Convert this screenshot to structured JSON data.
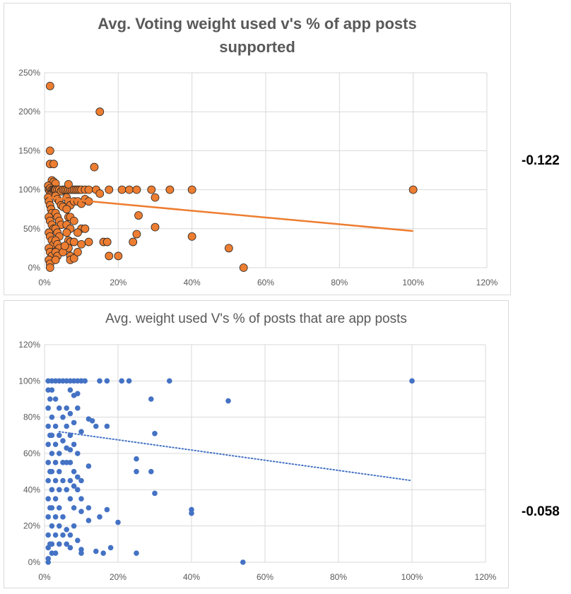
{
  "correlations": {
    "chart1": "-0.122",
    "chart2": "-0.058"
  },
  "chart_data": [
    {
      "type": "scatter",
      "title": "Avg. Voting weight used v's % of app posts supported",
      "title_lines": [
        "Avg. Voting weight used v's % of app posts",
        "supported"
      ],
      "xlim": [
        0,
        1.2
      ],
      "ylim": [
        0,
        2.5
      ],
      "x_ticks": [
        0,
        0.2,
        0.4,
        0.6,
        0.8,
        1.0,
        1.2
      ],
      "y_ticks": [
        0,
        0.5,
        1.0,
        1.5,
        2.0,
        2.5
      ],
      "x_tick_labels": [
        "0%",
        "20%",
        "40%",
        "60%",
        "80%",
        "100%",
        "120%"
      ],
      "y_tick_labels": [
        "0%",
        "50%",
        "100%",
        "150%",
        "200%",
        "250%"
      ],
      "grid": true,
      "marker_color": "#ED7D31",
      "marker_edge_color": "#262626",
      "trendline": {
        "style": "solid",
        "color": "#ED7D31",
        "x": [
          0.01,
          1.0
        ],
        "y": [
          0.9,
          0.47
        ]
      },
      "series": [
        {
          "points": [
            [
              0.015,
              2.33
            ],
            [
              0.15,
              2.0
            ],
            [
              0.015,
              1.5
            ],
            [
              0.015,
              1.33
            ],
            [
              0.025,
              1.33
            ],
            [
              0.135,
              1.29
            ],
            [
              0.02,
              1.12
            ],
            [
              0.025,
              1.1
            ],
            [
              0.03,
              1.08
            ],
            [
              0.01,
              1.05
            ],
            [
              0.012,
              1.0
            ],
            [
              0.014,
              0.98
            ],
            [
              0.016,
              1.02
            ],
            [
              0.018,
              0.95
            ],
            [
              0.02,
              1.0
            ],
            [
              0.022,
              0.97
            ],
            [
              0.024,
              1.0
            ],
            [
              0.026,
              0.99
            ],
            [
              0.028,
              1.0
            ],
            [
              0.03,
              1.0
            ],
            [
              0.035,
              1.0
            ],
            [
              0.04,
              1.0
            ],
            [
              0.045,
              0.98
            ],
            [
              0.05,
              1.0
            ],
            [
              0.055,
              1.0
            ],
            [
              0.06,
              1.0
            ],
            [
              0.065,
              1.0
            ],
            [
              0.07,
              1.0
            ],
            [
              0.075,
              1.0
            ],
            [
              0.08,
              1.0
            ],
            [
              0.085,
              1.0
            ],
            [
              0.09,
              1.0
            ],
            [
              0.095,
              1.0
            ],
            [
              0.1,
              1.0
            ],
            [
              0.11,
              1.0
            ],
            [
              0.12,
              1.0
            ],
            [
              0.14,
              1.0
            ],
            [
              0.15,
              0.95
            ],
            [
              0.175,
              1.0
            ],
            [
              0.21,
              1.0
            ],
            [
              0.23,
              1.0
            ],
            [
              0.25,
              1.0
            ],
            [
              0.29,
              1.0
            ],
            [
              0.34,
              1.0
            ],
            [
              0.4,
              1.0
            ],
            [
              1.0,
              1.0
            ],
            [
              0.3,
              0.9
            ],
            [
              0.065,
              1.07
            ],
            [
              0.01,
              0.9
            ],
            [
              0.012,
              0.85
            ],
            [
              0.015,
              0.8
            ],
            [
              0.018,
              0.75
            ],
            [
              0.02,
              0.7
            ],
            [
              0.012,
              0.65
            ],
            [
              0.015,
              0.6
            ],
            [
              0.02,
              0.55
            ],
            [
              0.025,
              0.5
            ],
            [
              0.012,
              0.45
            ],
            [
              0.015,
              0.4
            ],
            [
              0.02,
              0.35
            ],
            [
              0.025,
              0.3
            ],
            [
              0.012,
              0.25
            ],
            [
              0.015,
              0.2
            ],
            [
              0.02,
              0.15
            ],
            [
              0.012,
              0.1
            ],
            [
              0.015,
              0.05
            ],
            [
              0.015,
              0.0
            ],
            [
              0.03,
              0.92
            ],
            [
              0.035,
              0.88
            ],
            [
              0.04,
              0.85
            ],
            [
              0.045,
              0.8
            ],
            [
              0.05,
              0.78
            ],
            [
              0.03,
              0.7
            ],
            [
              0.035,
              0.65
            ],
            [
              0.04,
              0.6
            ],
            [
              0.045,
              0.55
            ],
            [
              0.03,
              0.5
            ],
            [
              0.035,
              0.45
            ],
            [
              0.04,
              0.4
            ],
            [
              0.03,
              0.35
            ],
            [
              0.035,
              0.3
            ],
            [
              0.04,
              0.25
            ],
            [
              0.03,
              0.2
            ],
            [
              0.035,
              0.15
            ],
            [
              0.03,
              0.1
            ],
            [
              0.06,
              0.9
            ],
            [
              0.065,
              0.85
            ],
            [
              0.07,
              0.8
            ],
            [
              0.08,
              0.85
            ],
            [
              0.09,
              0.85
            ],
            [
              0.1,
              0.82
            ],
            [
              0.11,
              0.88
            ],
            [
              0.12,
              0.85
            ],
            [
              0.06,
              0.75
            ],
            [
              0.065,
              0.65
            ],
            [
              0.07,
              0.65
            ],
            [
              0.06,
              0.55
            ],
            [
              0.07,
              0.5
            ],
            [
              0.06,
              0.45
            ],
            [
              0.065,
              0.35
            ],
            [
              0.07,
              0.33
            ],
            [
              0.08,
              0.33
            ],
            [
              0.065,
              0.25
            ],
            [
              0.07,
              0.15
            ],
            [
              0.07,
              0.1
            ],
            [
              0.08,
              0.12
            ],
            [
              0.1,
              0.5
            ],
            [
              0.11,
              0.5
            ],
            [
              0.12,
              0.33
            ],
            [
              0.16,
              0.33
            ],
            [
              0.17,
              0.33
            ],
            [
              0.175,
              0.15
            ],
            [
              0.2,
              0.15
            ],
            [
              0.24,
              0.33
            ],
            [
              0.25,
              0.43
            ],
            [
              0.255,
              0.67
            ],
            [
              0.3,
              0.52
            ],
            [
              0.4,
              0.4
            ],
            [
              0.5,
              0.25
            ],
            [
              0.54,
              0.0
            ],
            [
              0.09,
              0.45
            ],
            [
              0.1,
              0.3
            ],
            [
              0.09,
              0.2
            ],
            [
              0.05,
              0.2
            ],
            [
              0.055,
              0.28
            ],
            [
              0.08,
              0.6
            ]
          ]
        }
      ]
    },
    {
      "type": "scatter",
      "title": "Avg. weight used  V's % of posts that are app posts",
      "xlim": [
        0,
        1.2
      ],
      "ylim": [
        0,
        1.2
      ],
      "x_ticks": [
        0,
        0.2,
        0.4,
        0.6,
        0.8,
        1.0,
        1.2
      ],
      "y_ticks": [
        0,
        0.2,
        0.4,
        0.6,
        0.8,
        1.0,
        1.2
      ],
      "x_tick_labels": [
        "0%",
        "20%",
        "40%",
        "60%",
        "80%",
        "100%",
        "120%"
      ],
      "y_tick_labels": [
        "0%",
        "20%",
        "40%",
        "60%",
        "80%",
        "100%",
        "120%"
      ],
      "grid": true,
      "marker_color": "#4472C4",
      "trendline": {
        "style": "dotted",
        "color": "#4472C4",
        "x": [
          0.04,
          1.0
        ],
        "y": [
          0.72,
          0.45
        ]
      },
      "series": [
        {
          "points": [
            [
              0.01,
              1.0
            ],
            [
              0.02,
              1.0
            ],
            [
              0.03,
              1.0
            ],
            [
              0.04,
              1.0
            ],
            [
              0.05,
              1.0
            ],
            [
              0.06,
              1.0
            ],
            [
              0.07,
              1.0
            ],
            [
              0.08,
              1.0
            ],
            [
              0.09,
              1.0
            ],
            [
              0.1,
              1.0
            ],
            [
              0.11,
              1.0
            ],
            [
              0.15,
              1.0
            ],
            [
              0.17,
              1.0
            ],
            [
              0.21,
              1.0
            ],
            [
              0.23,
              1.0
            ],
            [
              0.34,
              1.0
            ],
            [
              1.0,
              1.0
            ],
            [
              0.29,
              0.9
            ],
            [
              0.5,
              0.89
            ],
            [
              0.3,
              0.71
            ],
            [
              0.12,
              0.79
            ],
            [
              0.13,
              0.78
            ],
            [
              0.17,
              0.75
            ],
            [
              0.14,
              0.75
            ],
            [
              0.1,
              0.72
            ],
            [
              0.25,
              0.57
            ],
            [
              0.25,
              0.5
            ],
            [
              0.29,
              0.5
            ],
            [
              0.3,
              0.38
            ],
            [
              0.4,
              0.29
            ],
            [
              0.4,
              0.27
            ],
            [
              0.2,
              0.22
            ],
            [
              0.17,
              0.29
            ],
            [
              0.15,
              0.25
            ],
            [
              0.12,
              0.3
            ],
            [
              0.12,
              0.23
            ],
            [
              0.1,
              0.45
            ],
            [
              0.12,
              0.53
            ],
            [
              0.1,
              0.35
            ],
            [
              0.1,
              0.28
            ],
            [
              0.1,
              0.07
            ],
            [
              0.1,
              0.05
            ],
            [
              0.14,
              0.06
            ],
            [
              0.16,
              0.05
            ],
            [
              0.18,
              0.08
            ],
            [
              0.25,
              0.05
            ],
            [
              0.54,
              0.0
            ],
            [
              0.02,
              0.95
            ],
            [
              0.03,
              0.9
            ],
            [
              0.04,
              0.85
            ],
            [
              0.05,
              0.8
            ],
            [
              0.06,
              0.75
            ],
            [
              0.07,
              0.7
            ],
            [
              0.08,
              0.65
            ],
            [
              0.09,
              0.6
            ],
            [
              0.02,
              0.6
            ],
            [
              0.03,
              0.55
            ],
            [
              0.04,
              0.5
            ],
            [
              0.05,
              0.45
            ],
            [
              0.06,
              0.4
            ],
            [
              0.07,
              0.35
            ],
            [
              0.08,
              0.3
            ],
            [
              0.02,
              0.3
            ],
            [
              0.03,
              0.25
            ],
            [
              0.04,
              0.2
            ],
            [
              0.05,
              0.15
            ],
            [
              0.06,
              0.1
            ],
            [
              0.07,
              0.08
            ],
            [
              0.02,
              0.05
            ],
            [
              0.01,
              0.02
            ],
            [
              0.01,
              0.0
            ],
            [
              0.02,
              0.8
            ],
            [
              0.03,
              0.75
            ],
            [
              0.04,
              0.7
            ],
            [
              0.02,
              0.7
            ],
            [
              0.03,
              0.65
            ],
            [
              0.04,
              0.6
            ],
            [
              0.02,
              0.5
            ],
            [
              0.03,
              0.45
            ],
            [
              0.04,
              0.4
            ],
            [
              0.02,
              0.4
            ],
            [
              0.03,
              0.35
            ],
            [
              0.04,
              0.3
            ],
            [
              0.02,
              0.2
            ],
            [
              0.03,
              0.15
            ],
            [
              0.04,
              0.1
            ],
            [
              0.02,
              0.1
            ],
            [
              0.03,
              0.05
            ],
            [
              0.06,
              0.85
            ],
            [
              0.07,
              0.82
            ],
            [
              0.08,
              0.77
            ],
            [
              0.09,
              0.85
            ],
            [
              0.08,
              0.92
            ],
            [
              0.07,
              0.95
            ],
            [
              0.09,
              0.93
            ],
            [
              0.07,
              0.55
            ],
            [
              0.08,
              0.5
            ],
            [
              0.09,
              0.47
            ],
            [
              0.08,
              0.42
            ],
            [
              0.09,
              0.4
            ],
            [
              0.07,
              0.62
            ],
            [
              0.06,
              0.55
            ],
            [
              0.07,
              0.45
            ],
            [
              0.08,
              0.2
            ],
            [
              0.07,
              0.15
            ],
            [
              0.05,
              0.25
            ],
            [
              0.06,
              0.18
            ],
            [
              0.09,
              0.12
            ],
            [
              0.05,
              0.67
            ],
            [
              0.06,
              0.63
            ],
            [
              0.05,
              0.55
            ],
            [
              0.01,
              0.95
            ],
            [
              0.01,
              0.85
            ],
            [
              0.01,
              0.75
            ],
            [
              0.01,
              0.65
            ],
            [
              0.01,
              0.55
            ],
            [
              0.01,
              0.45
            ],
            [
              0.01,
              0.35
            ],
            [
              0.01,
              0.25
            ],
            [
              0.01,
              0.15
            ],
            [
              0.01,
              0.08
            ],
            [
              0.015,
              0.9
            ],
            [
              0.015,
              0.7
            ],
            [
              0.015,
              0.5
            ],
            [
              0.015,
              0.3
            ],
            [
              0.015,
              0.1
            ]
          ]
        }
      ]
    }
  ]
}
